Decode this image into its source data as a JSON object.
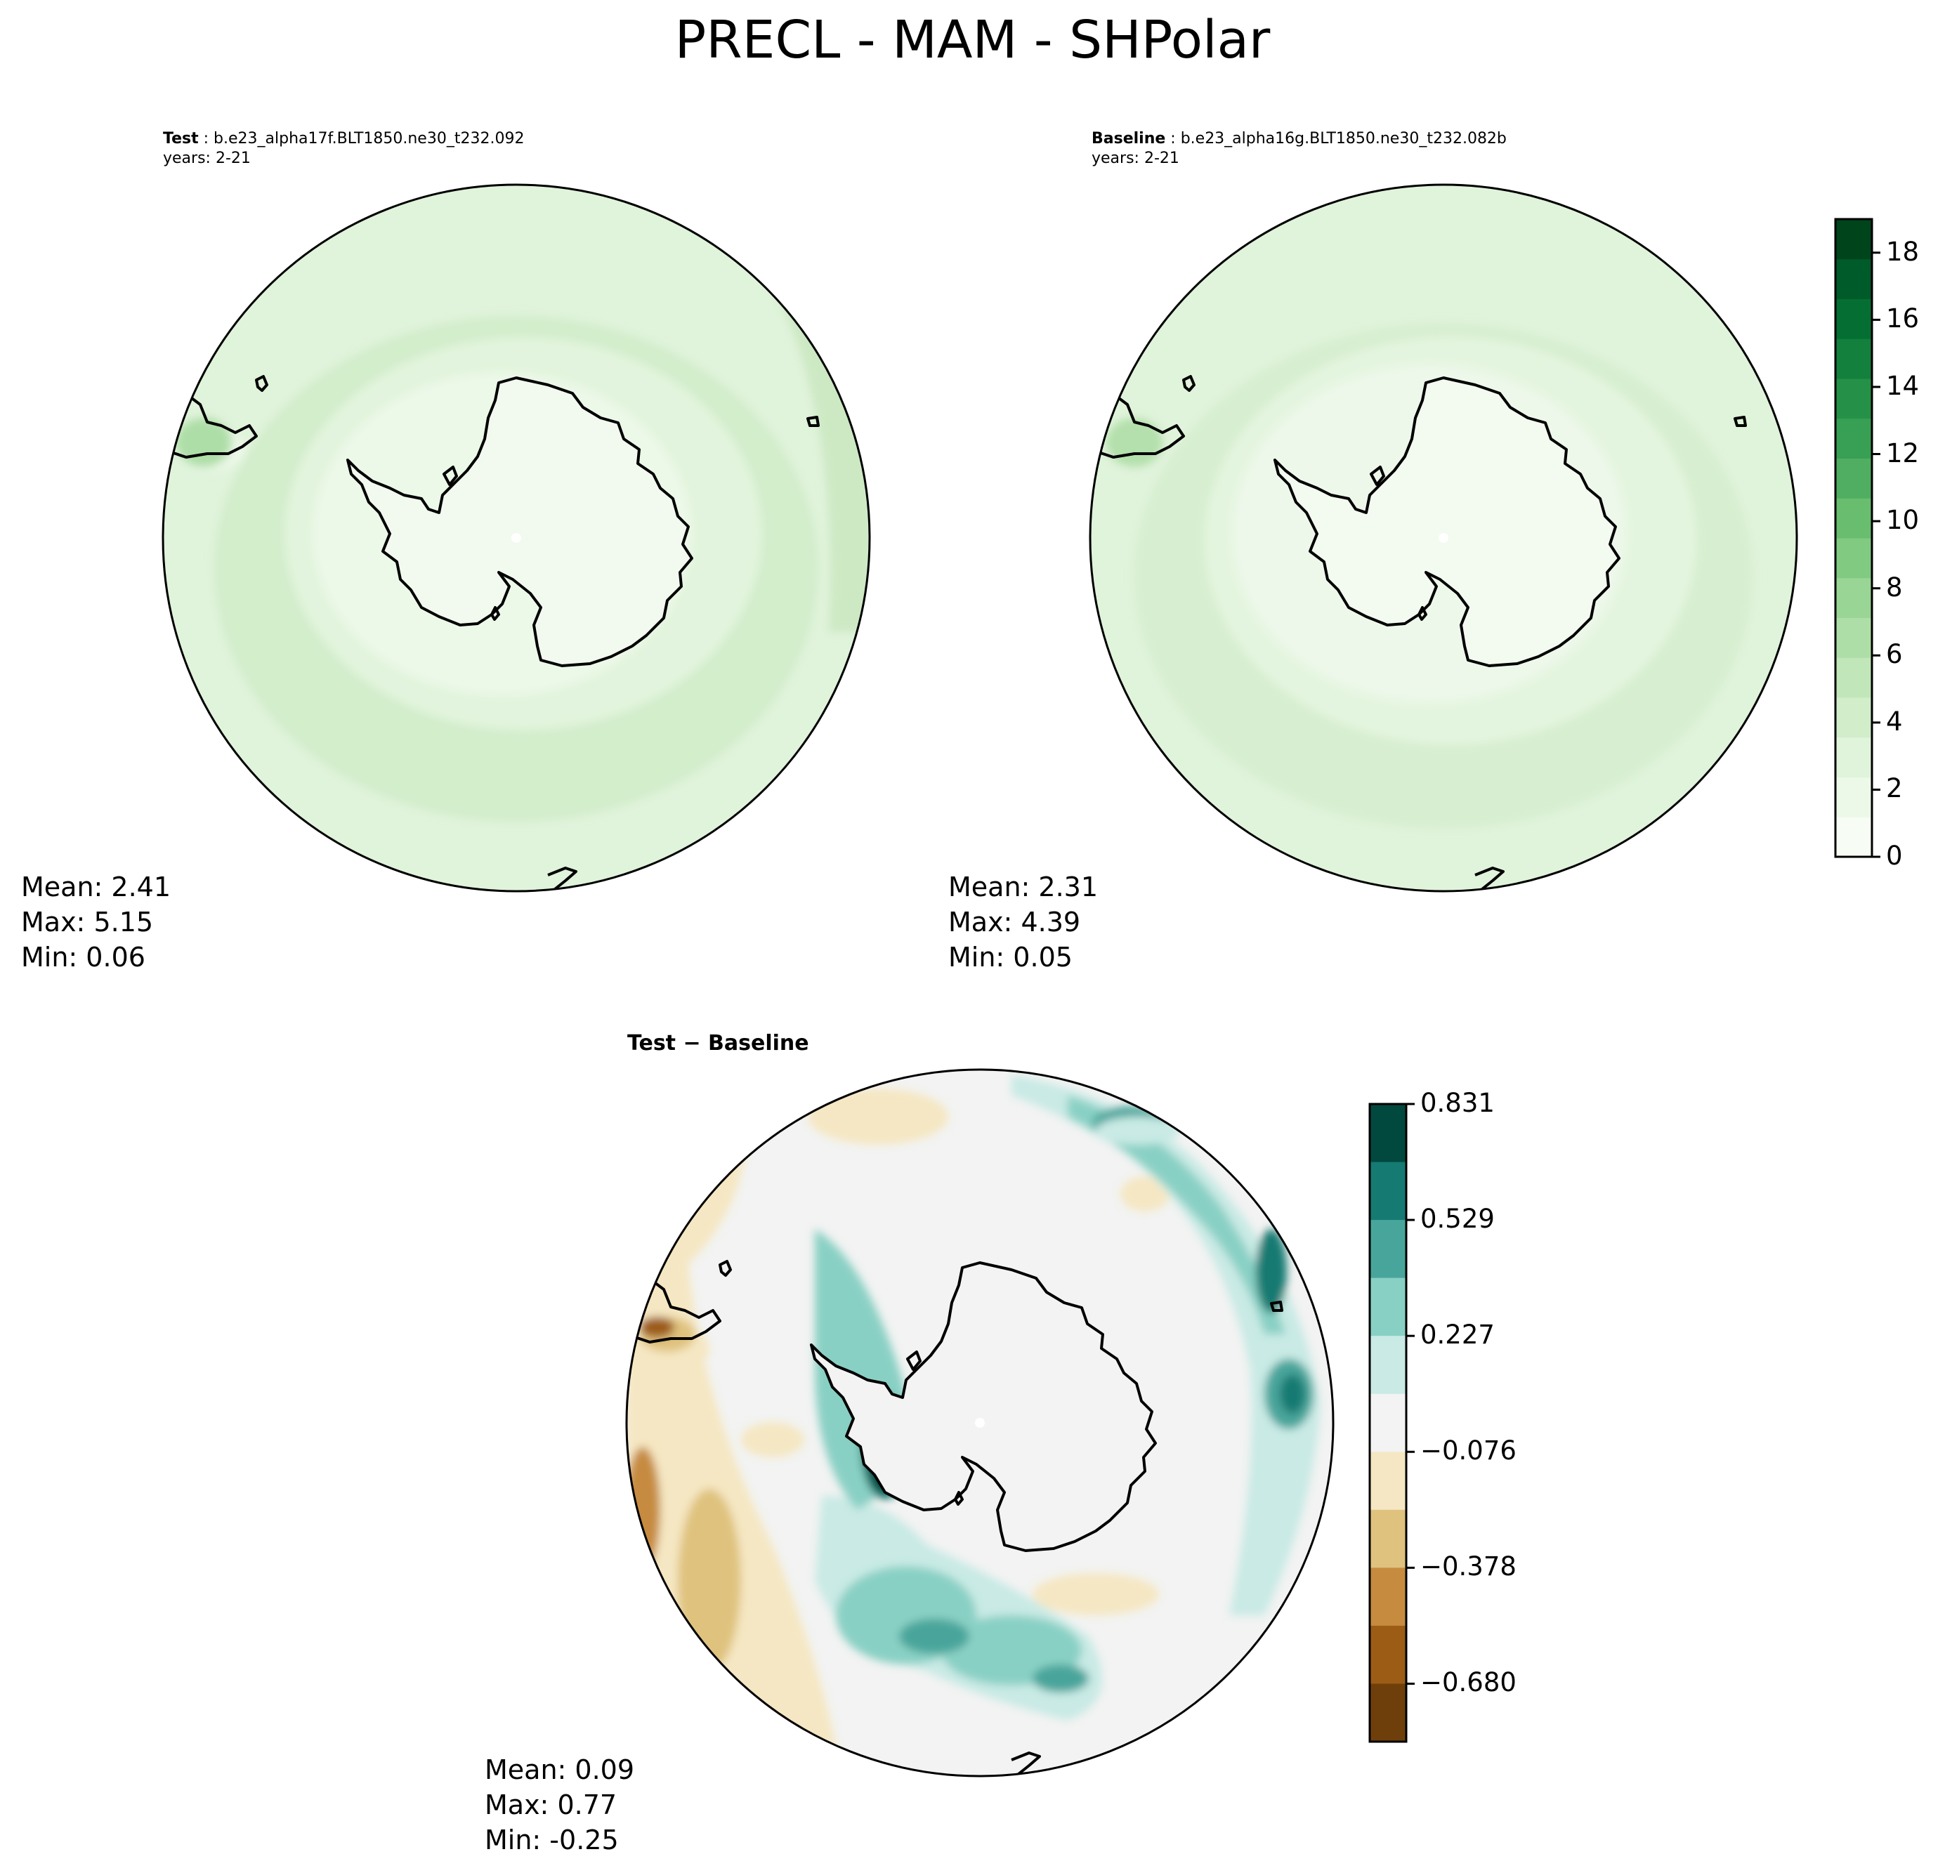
{
  "title": "PRECL - MAM - SHPolar",
  "panels": [
    {
      "id": "test",
      "label_bold": "Test",
      "label_rest": " : b.e23_alpha17f.BLT1850.ne30_t232.092",
      "years": "years: 2-21",
      "stats": {
        "mean": "Mean:  2.41",
        "max": "Max:  5.15",
        "min": "Min:  0.06"
      }
    },
    {
      "id": "baseline",
      "label_bold": "Baseline",
      "label_rest": " : b.e23_alpha16g.BLT1850.ne30_t232.082b",
      "years": "years: 2-21",
      "stats": {
        "mean": "Mean:  2.31",
        "max": "Max:  4.39",
        "min": "Min:  0.05"
      }
    },
    {
      "id": "difference",
      "label_bold": "Test − Baseline",
      "stats": {
        "mean": "Mean:  0.09",
        "max": "Max:  0.77",
        "min": "Min: -0.25"
      }
    }
  ],
  "colorbars": {
    "precip": {
      "range": [
        0,
        19
      ],
      "ticks": [
        "0",
        "2",
        "4",
        "6",
        "8",
        "10",
        "12",
        "14",
        "16",
        "18"
      ],
      "colors": [
        "#f7fcf5",
        "#ecf8e8",
        "#e0f3db",
        "#d1edca",
        "#c1e6b9",
        "#aedea7",
        "#99d595",
        "#81ca82",
        "#68bd6f",
        "#4fae61",
        "#38a055",
        "#259148",
        "#13803e",
        "#056f33",
        "#005b2a",
        "#00441b"
      ]
    },
    "diff": {
      "ticks": [
        "0.831",
        "0.529",
        "0.227",
        "−0.076",
        "−0.378",
        "−0.680"
      ],
      "colors": [
        "#01483e",
        "#157a72",
        "#48a59b",
        "#89d0c4",
        "#c9eae5",
        "#f2f3f2",
        "#f5e7c3",
        "#dfc27e",
        "#c68b3f",
        "#9c5c16",
        "#6e3f0b"
      ]
    }
  }
}
